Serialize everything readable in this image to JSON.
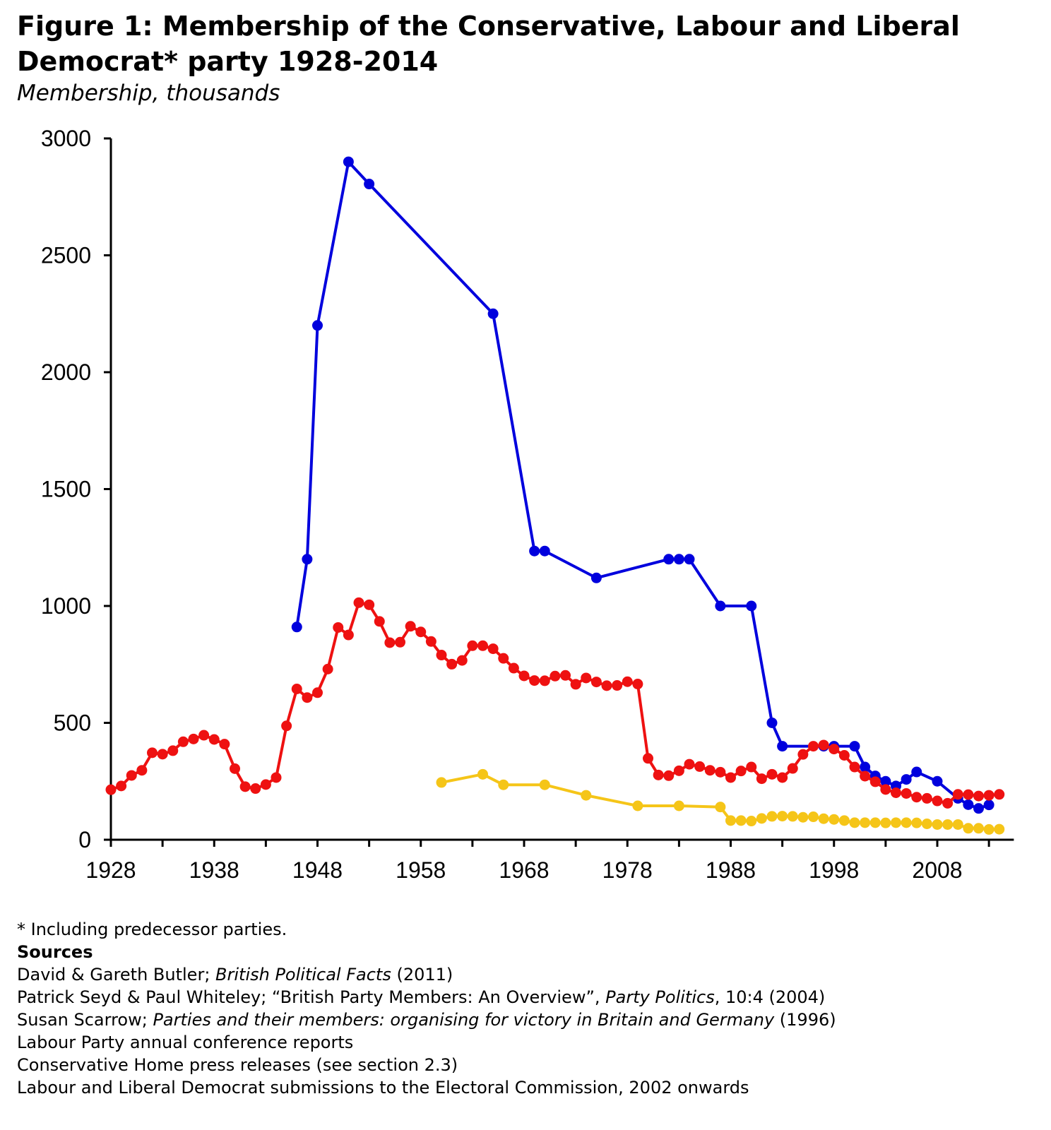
{
  "chart_data": {
    "type": "line",
    "title": "Figure 1: Membership of the Conservative, Labour and Liberal Democrat* party 1928-2014",
    "subtitle": "Membership, thousands",
    "xlabel": "",
    "ylabel": "",
    "xlim": [
      1928,
      2015
    ],
    "ylim": [
      0,
      3000
    ],
    "x_tick_labels": [
      "1928",
      "1938",
      "1948",
      "1958",
      "1968",
      "1978",
      "1988",
      "1998",
      "2008"
    ],
    "y_tick_labels": [
      "0",
      "500",
      "1000",
      "1500",
      "2000",
      "2500",
      "3000"
    ],
    "grid": false,
    "legend": "none",
    "series": [
      {
        "color": "#0000dd",
        "points": [
          [
            1946,
            910
          ],
          [
            1947,
            1200
          ],
          [
            1948,
            2200
          ],
          [
            1951,
            2900
          ],
          [
            1953,
            2805
          ],
          [
            1965,
            2250
          ],
          [
            1969,
            1235
          ],
          [
            1970,
            1235
          ],
          [
            1975,
            1120
          ],
          [
            1982,
            1200
          ],
          [
            1983,
            1200
          ],
          [
            1984,
            1200
          ],
          [
            1987,
            1000
          ],
          [
            1990,
            1000
          ],
          [
            1992,
            500
          ],
          [
            1993,
            400
          ],
          [
            1997,
            400
          ],
          [
            1998,
            400
          ],
          [
            2000,
            400
          ],
          [
            2001,
            311
          ],
          [
            2002,
            273
          ],
          [
            2003,
            250
          ],
          [
            2004,
            230
          ],
          [
            2005,
            258
          ],
          [
            2006,
            290
          ],
          [
            2008,
            250
          ],
          [
            2010,
            177
          ],
          [
            2011,
            150
          ],
          [
            2012,
            134
          ],
          [
            2013,
            149
          ]
        ]
      },
      {
        "color": "#ee1111",
        "points": [
          [
            1928,
            214
          ],
          [
            1929,
            230
          ],
          [
            1930,
            275
          ],
          [
            1931,
            297
          ],
          [
            1932,
            372
          ],
          [
            1933,
            366
          ],
          [
            1934,
            381
          ],
          [
            1935,
            419
          ],
          [
            1936,
            431
          ],
          [
            1937,
            447
          ],
          [
            1938,
            429
          ],
          [
            1939,
            409
          ],
          [
            1940,
            304
          ],
          [
            1941,
            227
          ],
          [
            1942,
            219
          ],
          [
            1943,
            236
          ],
          [
            1944,
            266
          ],
          [
            1945,
            487
          ],
          [
            1946,
            645
          ],
          [
            1947,
            608
          ],
          [
            1948,
            629
          ],
          [
            1949,
            730
          ],
          [
            1950,
            908
          ],
          [
            1951,
            876
          ],
          [
            1952,
            1014
          ],
          [
            1953,
            1005
          ],
          [
            1954,
            934
          ],
          [
            1955,
            843
          ],
          [
            1956,
            845
          ],
          [
            1957,
            913
          ],
          [
            1958,
            889
          ],
          [
            1959,
            848
          ],
          [
            1960,
            790
          ],
          [
            1961,
            751
          ],
          [
            1962,
            767
          ],
          [
            1963,
            830
          ],
          [
            1964,
            830
          ],
          [
            1965,
            817
          ],
          [
            1966,
            776
          ],
          [
            1967,
            734
          ],
          [
            1968,
            701
          ],
          [
            1969,
            681
          ],
          [
            1970,
            680
          ],
          [
            1971,
            700
          ],
          [
            1972,
            703
          ],
          [
            1973,
            665
          ],
          [
            1974,
            692
          ],
          [
            1975,
            675
          ],
          [
            1976,
            659
          ],
          [
            1977,
            660
          ],
          [
            1978,
            676
          ],
          [
            1979,
            666
          ],
          [
            1980,
            348
          ],
          [
            1981,
            277
          ],
          [
            1982,
            274
          ],
          [
            1983,
            295
          ],
          [
            1984,
            323
          ],
          [
            1985,
            313
          ],
          [
            1986,
            297
          ],
          [
            1987,
            289
          ],
          [
            1988,
            266
          ],
          [
            1989,
            294
          ],
          [
            1990,
            311
          ],
          [
            1991,
            261
          ],
          [
            1992,
            280
          ],
          [
            1993,
            266
          ],
          [
            1994,
            305
          ],
          [
            1995,
            365
          ],
          [
            1996,
            400
          ],
          [
            1997,
            405
          ],
          [
            1998,
            388
          ],
          [
            1999,
            361
          ],
          [
            2000,
            311
          ],
          [
            2001,
            272
          ],
          [
            2002,
            248
          ],
          [
            2003,
            215
          ],
          [
            2004,
            201
          ],
          [
            2005,
            198
          ],
          [
            2006,
            182
          ],
          [
            2007,
            177
          ],
          [
            2008,
            166
          ],
          [
            2009,
            156
          ],
          [
            2010,
            194
          ],
          [
            2011,
            193
          ],
          [
            2012,
            187
          ],
          [
            2013,
            190
          ],
          [
            2014,
            194
          ]
        ]
      },
      {
        "color": "#f5c518",
        "points": [
          [
            1960,
            245
          ],
          [
            1964,
            280
          ],
          [
            1966,
            235
          ],
          [
            1970,
            235
          ],
          [
            1974,
            190
          ],
          [
            1979,
            145
          ],
          [
            1983,
            145
          ],
          [
            1987,
            140
          ],
          [
            1988,
            82
          ],
          [
            1989,
            82
          ],
          [
            1990,
            80
          ],
          [
            1991,
            91
          ],
          [
            1992,
            100
          ],
          [
            1993,
            101
          ],
          [
            1994,
            100
          ],
          [
            1995,
            96
          ],
          [
            1996,
            98
          ],
          [
            1997,
            90
          ],
          [
            1998,
            87
          ],
          [
            1999,
            82
          ],
          [
            2000,
            73
          ],
          [
            2001,
            73
          ],
          [
            2002,
            73
          ],
          [
            2003,
            72
          ],
          [
            2004,
            73
          ],
          [
            2005,
            73
          ],
          [
            2006,
            72
          ],
          [
            2007,
            68
          ],
          [
            2008,
            65
          ],
          [
            2009,
            65
          ],
          [
            2010,
            65
          ],
          [
            2011,
            49
          ],
          [
            2012,
            49
          ],
          [
            2013,
            44
          ],
          [
            2014,
            45
          ]
        ]
      }
    ]
  },
  "notes": {
    "footnote": "* Including predecessor parties.",
    "sources_heading": "Sources",
    "sources": [
      {
        "pre": "David & Gareth Butler; ",
        "ital": "British Political Facts",
        "post": " (2011)"
      },
      {
        "pre": "Patrick Seyd & Paul Whiteley; “British Party Members: An Overview”, ",
        "ital": "Party Politics",
        "post": ", 10:4 (2004)"
      },
      {
        "pre": "Susan Scarrow; ",
        "ital": "Parties and their members: organising for victory in Britain and Germany",
        "post": " (1996)"
      },
      {
        "pre": "Labour Party annual conference reports",
        "ital": "",
        "post": ""
      },
      {
        "pre": "Conservative Home press releases (see section 2.3)",
        "ital": "",
        "post": ""
      },
      {
        "pre": "Labour and Liberal Democrat submissions to the Electoral Commission, 2002 onwards",
        "ital": "",
        "post": ""
      }
    ]
  }
}
